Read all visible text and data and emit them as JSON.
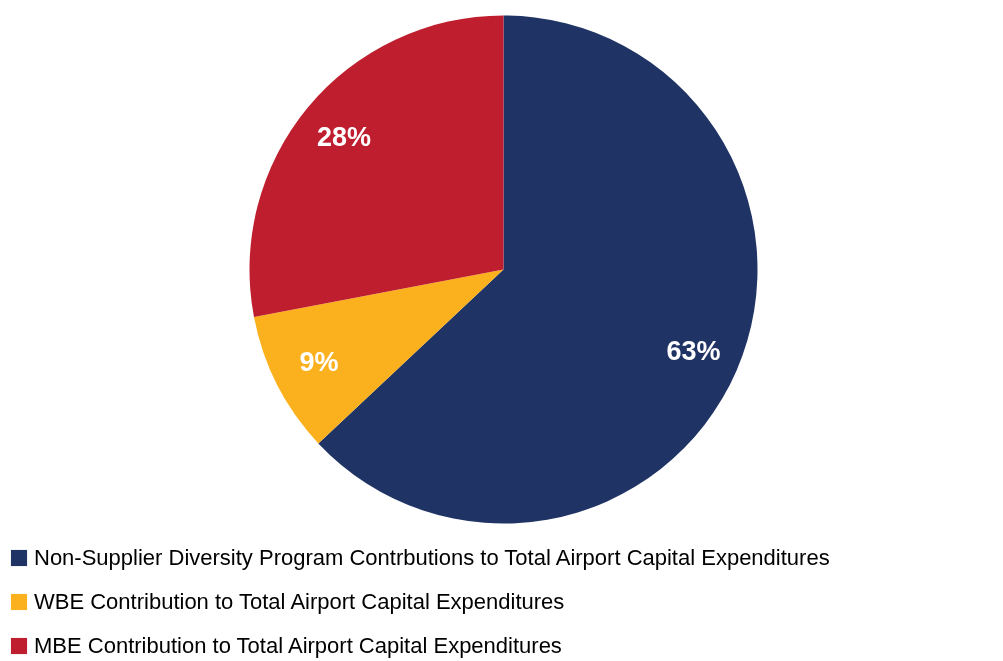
{
  "chart_data": {
    "type": "pie",
    "categories": [
      "Non-Supplier Diversity Program Contrbutions to Total Airport Capital Expenditures",
      "WBE Contribution to Total Airport Capital Expenditures",
      "MBE Contribution to Total Airport Capital Expenditures"
    ],
    "values": [
      63,
      9,
      28
    ],
    "colors": [
      "#1f3464",
      "#fbb11e",
      "#be1e2d"
    ],
    "value_labels": [
      "63%",
      "9%",
      "28%"
    ],
    "legend": "bottom"
  }
}
